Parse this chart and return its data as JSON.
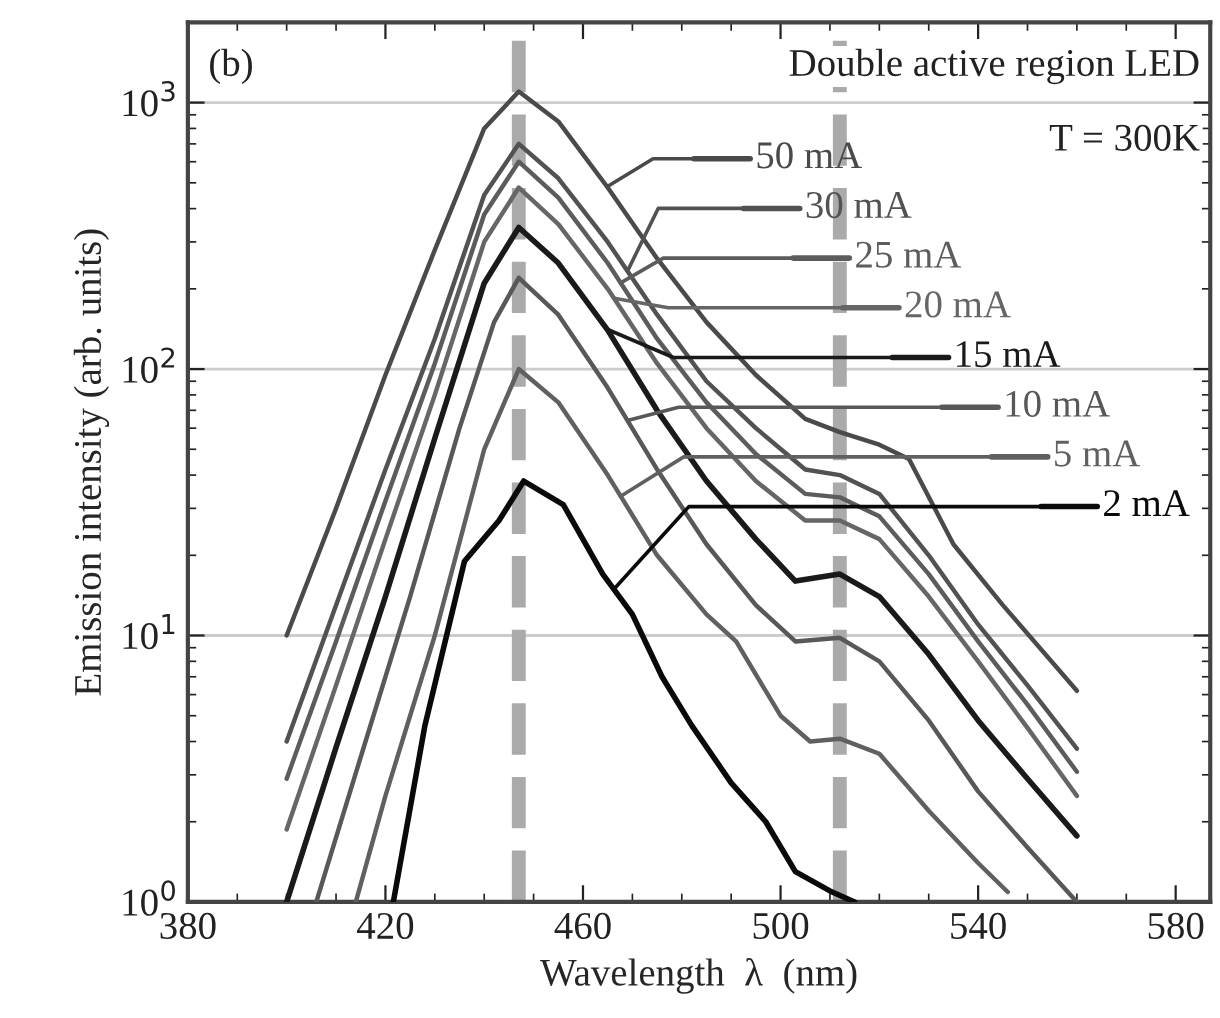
{
  "chart_data": {
    "type": "line",
    "xlabel": "Wavelength  λ  (nm)",
    "ylabel": "Emission intensity (arb. units)",
    "annotations": [
      "(b)",
      "Double active region LED",
      "T = 300K"
    ],
    "log": "y",
    "xlim": [
      380,
      587
    ],
    "xticks": [
      380,
      420,
      460,
      500,
      540,
      580
    ],
    "ylim": [
      1,
      2000
    ],
    "yticks": [
      {
        "value": 1,
        "label": "10$^{0}$"
      },
      {
        "value": 10,
        "label": "10$^{1}$"
      },
      {
        "value": 100,
        "label": "10$^{2}$"
      },
      {
        "value": 1000,
        "label": "10$^{3}$"
      }
    ],
    "grid": "y",
    "legend": "right",
    "marker": "none",
    "line_style": "solid",
    "ref_lines": [
      {
        "axis": "x",
        "value": 447,
        "label": null,
        "color": "#aaaaaa",
        "line_style": "dashed"
      },
      {
        "axis": "x",
        "value": 512,
        "label": null,
        "color": "#aaaaaa",
        "line_style": "dashed"
      }
    ],
    "series": [
      {
        "name": "50 mA",
        "color": "#4a4a4a",
        "x": [
          400,
          410,
          420,
          430,
          440,
          447,
          455,
          465,
          475,
          485,
          495,
          505,
          512,
          520,
          526,
          535,
          545,
          560
        ],
        "values": [
          10,
          30,
          95,
          280,
          800,
          1100,
          850,
          480,
          260,
          150,
          95,
          65,
          58,
          52,
          46,
          22,
          13,
          6.2
        ]
      },
      {
        "name": "30 mA",
        "color": "#525252",
        "x": [
          400,
          410,
          420,
          430,
          440,
          447,
          455,
          465,
          475,
          485,
          495,
          505,
          512,
          520,
          530,
          540,
          550,
          560
        ],
        "values": [
          4.0,
          13,
          42,
          130,
          450,
          700,
          520,
          300,
          160,
          90,
          60,
          42,
          40,
          34,
          20,
          11,
          6.5,
          3.76
        ]
      },
      {
        "name": "25 mA",
        "color": "#5c5c5c",
        "x": [
          400,
          410,
          420,
          430,
          440,
          447,
          455,
          465,
          475,
          485,
          495,
          505,
          512,
          520,
          530,
          540,
          550,
          560
        ],
        "values": [
          2.9,
          9.5,
          32,
          105,
          380,
          600,
          440,
          250,
          130,
          75,
          48,
          34,
          33,
          28,
          17,
          9.5,
          5.5,
          3.08
        ]
      },
      {
        "name": "20 mA",
        "color": "#666666",
        "x": [
          400,
          410,
          420,
          430,
          440,
          447,
          455,
          465,
          475,
          485,
          495,
          505,
          512,
          520,
          530,
          540,
          550,
          560
        ],
        "values": [
          1.87,
          6.5,
          23,
          80,
          300,
          480,
          350,
          200,
          105,
          60,
          38,
          27,
          27,
          23,
          14,
          8,
          4.5,
          2.5
        ]
      },
      {
        "name": "15 mA",
        "color": "#1a1a1a",
        "x": [
          400,
          410,
          420,
          430,
          440,
          447,
          455,
          465,
          475,
          485,
          495,
          503,
          512,
          520,
          530,
          540,
          550,
          560
        ],
        "values": [
          1.0,
          3.8,
          14,
          55,
          210,
          340,
          250,
          140,
          70,
          38,
          23,
          16,
          17,
          14,
          8.5,
          4.8,
          2.9,
          1.77
        ]
      },
      {
        "name": "10 mA",
        "color": "#585858",
        "x": [
          406,
          415,
          425,
          435,
          442,
          447,
          455,
          465,
          475,
          485,
          495,
          503,
          512,
          520,
          530,
          540,
          550,
          560
        ],
        "values": [
          1.0,
          3.5,
          14,
          60,
          150,
          220,
          160,
          85,
          42,
          22,
          13,
          9.5,
          9.8,
          8,
          4.8,
          2.6,
          1.6,
          1.0
        ]
      },
      {
        "name": "5 mA",
        "color": "#606060",
        "x": [
          414,
          420,
          430,
          440,
          447,
          455,
          465,
          475,
          485,
          491,
          500,
          506,
          512,
          520,
          530,
          540,
          546
        ],
        "values": [
          1.0,
          2.5,
          10,
          50,
          100,
          75,
          40,
          20,
          12,
          9.5,
          5,
          4,
          4.1,
          3.6,
          2.2,
          1.4,
          1.09
        ]
      },
      {
        "name": "2 mA",
        "color": "#0a0a0a",
        "x": [
          421.6,
          428,
          436,
          443,
          448,
          456,
          464,
          470,
          476,
          482,
          490,
          497,
          503,
          510,
          515
        ],
        "values": [
          1.0,
          4.6,
          19,
          27,
          38,
          31,
          17,
          12,
          7,
          4.6,
          2.8,
          2.0,
          1.3,
          1.1,
          1.0
        ]
      }
    ]
  }
}
